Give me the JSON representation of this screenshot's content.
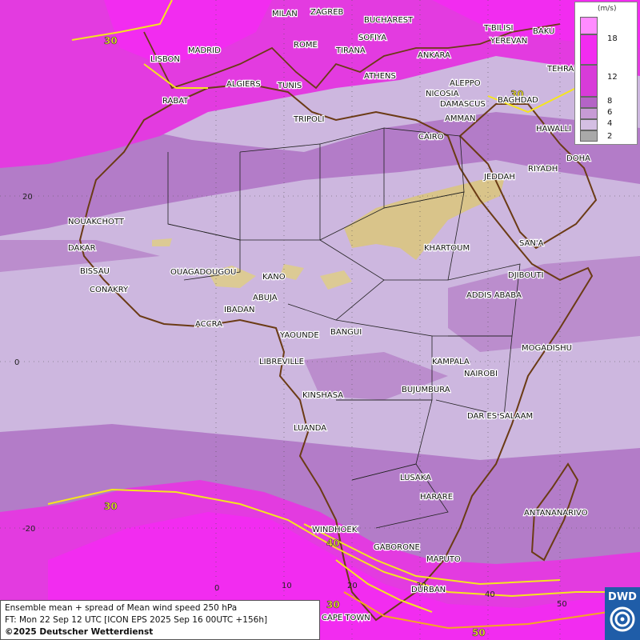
{
  "title": "Ensemble mean + spread of Mean wind speed 250 hPa",
  "forecast_time": "FT: Mon 22 Sep 12 UTC [ICON EPS 2025 Sep 16 00UTC +156h]",
  "copyright": "©2025 Deutscher Wetterdienst",
  "logo_text": "DWD",
  "legend": {
    "unit": "(m/s)",
    "entries": [
      {
        "label": "18",
        "color": "#ff8cff"
      },
      {
        "label": "",
        "color": "#f22cf0"
      },
      {
        "label": "12",
        "color": "#d83bd9"
      },
      {
        "label": "8",
        "color": "#b464c6"
      },
      {
        "label": "6",
        "color": "#c79bd5"
      },
      {
        "label": "4",
        "color": "#d4bfe3"
      },
      {
        "label": "2",
        "color": "#a9a9a9"
      }
    ]
  },
  "colors": {
    "strong_wind": "#e33be0",
    "moderate_wind": "#b37cc8",
    "weak_wind": "#cdb7df",
    "spread_high": "#d9c48a",
    "isotach": "#f5e51f",
    "isotach_strong": "#f5a623",
    "coast": "#6b3b15",
    "border": "#222222"
  },
  "cities": [
    "MILAN",
    "ZAGREB",
    "BUCHAREST",
    "T'BILISI",
    "BAKU",
    "YEREVAN",
    "TEHRAN",
    "LISBON",
    "MADRID",
    "ROME",
    "SOFIYA",
    "TIRANA",
    "ANKARA",
    "ATHENS",
    "ALGIERS",
    "TUNIS",
    "RABAT",
    "ALEPPO",
    "NICOSIA",
    "BAGHDAD",
    "DAMASCUS",
    "AMMAN",
    "TRIPOLI",
    "CAIRO",
    "HAWALLI",
    "DOHA",
    "RIYADH",
    "JEDDAH",
    "NOUAKCHOTT",
    "DAKAR",
    "BISSAU",
    "CONAKRY",
    "OUAGADOUGOU",
    "KANO",
    "KHARTOUM",
    "SAN'A",
    "DJIBOUTI",
    "ABUJA",
    "ADDIS ABABA",
    "IBADAN",
    "ACCRA",
    "YAOUNDE",
    "BANGUI",
    "MOGADISHU",
    "LIBREVILLE",
    "KAMPALA",
    "NAIROBI",
    "KINSHASA",
    "BUJUMBURA",
    "DAR ES SALAAM",
    "LUANDA",
    "LUSAKA",
    "HARARE",
    "ANTANANARIVO",
    "WINDHOEK",
    "GABORONE",
    "MAPUTO",
    "DURBAN",
    "CAPE TOWN"
  ],
  "grid_labels": [
    "20",
    "0",
    "-20",
    "0",
    "10",
    "20",
    "30",
    "40",
    "50"
  ],
  "contour_labels": [
    "30",
    "30",
    "30",
    "40",
    "30",
    "50"
  ]
}
